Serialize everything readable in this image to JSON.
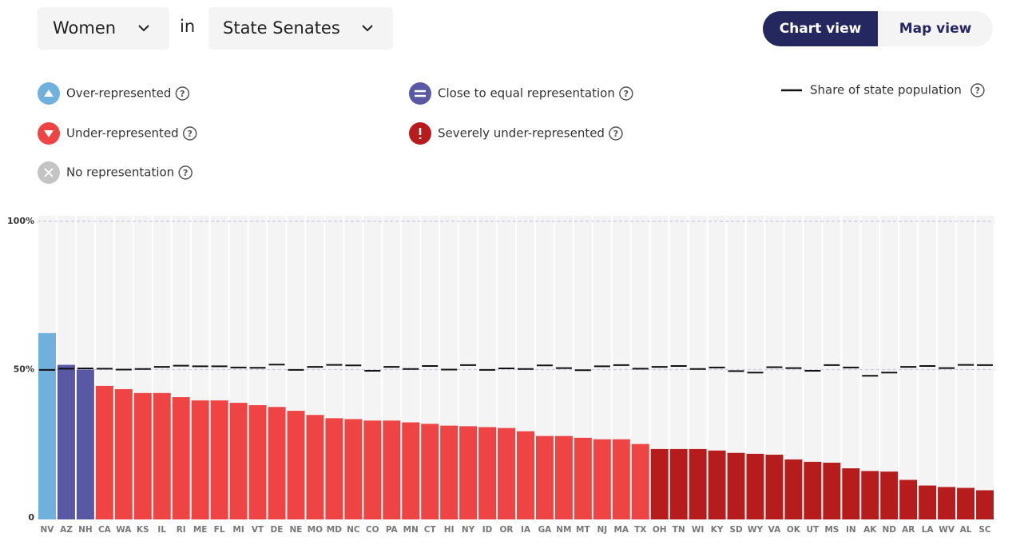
{
  "filters": {
    "group": "Women",
    "connector": "in",
    "chamber": "State Senates"
  },
  "view_toggle": {
    "active": "Chart view",
    "other": "Map view"
  },
  "help_icon": "?",
  "chart_data": {
    "type": "bar",
    "categories": [
      "NV",
      "AZ",
      "NH",
      "CA",
      "WA",
      "KS",
      "IL",
      "RI",
      "ME",
      "FL",
      "MI",
      "VT",
      "DE",
      "NE",
      "MO",
      "MD",
      "NC",
      "CO",
      "PA",
      "MN",
      "CT",
      "HI",
      "NY",
      "ID",
      "OR",
      "IA",
      "GA",
      "NM",
      "MT",
      "NJ",
      "MA",
      "TX",
      "OH",
      "TN",
      "WI",
      "KY",
      "SD",
      "WY",
      "VA",
      "OK",
      "UT",
      "MS",
      "IN",
      "AK",
      "ND",
      "AR",
      "LA",
      "WV",
      "AL",
      "SC"
    ],
    "series": [
      {
        "name": "Over-represented",
        "color": "#6fb0dd",
        "values": [
          62.3,
          null,
          null,
          null,
          null,
          null,
          null,
          null,
          null,
          null,
          null,
          null,
          null,
          null,
          null,
          null,
          null,
          null,
          null,
          null,
          null,
          null,
          null,
          null,
          null,
          null,
          null,
          null,
          null,
          null,
          null,
          null,
          null,
          null,
          null,
          null,
          null,
          null,
          null,
          null,
          null,
          null,
          null,
          null,
          null,
          null,
          null,
          null,
          null,
          null
        ]
      },
      {
        "name": "Close to equal representation",
        "color": "#5858a4",
        "values": [
          null,
          51.6,
          50,
          null,
          null,
          null,
          null,
          null,
          null,
          null,
          null,
          null,
          null,
          null,
          null,
          null,
          null,
          null,
          null,
          null,
          null,
          null,
          null,
          null,
          null,
          null,
          null,
          null,
          null,
          null,
          null,
          null,
          null,
          null,
          null,
          null,
          null,
          null,
          null,
          null,
          null,
          null,
          null,
          null,
          null,
          null,
          null,
          null,
          null,
          null
        ]
      },
      {
        "name": "Under-represented",
        "color": "#ef4444",
        "values": [
          null,
          null,
          null,
          44.5,
          43.4,
          42.1,
          42.1,
          40.7,
          39.6,
          39.6,
          38.8,
          38.0,
          37.4,
          36.1,
          34.7,
          33.6,
          33.3,
          32.8,
          32.8,
          32.2,
          31.7,
          31.1,
          30.9,
          30.6,
          30.3,
          29.2,
          27.6,
          27.6,
          27.0,
          26.5,
          26.5,
          24.9,
          null,
          null,
          null,
          null,
          null,
          null,
          null,
          null,
          null,
          null,
          null,
          null,
          null,
          null,
          null,
          null,
          null,
          null
        ]
      },
      {
        "name": "Severely under-represented",
        "color": "#b71c1c",
        "values": [
          null,
          null,
          null,
          null,
          null,
          null,
          null,
          null,
          null,
          null,
          null,
          null,
          null,
          null,
          null,
          null,
          null,
          null,
          null,
          null,
          null,
          null,
          null,
          null,
          null,
          null,
          null,
          null,
          null,
          null,
          null,
          null,
          23.2,
          23.2,
          23.2,
          22.7,
          21.9,
          21.6,
          21.3,
          19.7,
          18.9,
          18.6,
          16.7,
          15.8,
          15.6,
          12.8,
          10.9,
          10.4,
          10.1,
          9.3
        ]
      },
      {
        "name": "No representation",
        "color": "#c4c4c4",
        "values": [
          null,
          null,
          null,
          null,
          null,
          null,
          null,
          null,
          null,
          null,
          null,
          null,
          null,
          null,
          null,
          null,
          null,
          null,
          null,
          null,
          null,
          null,
          null,
          null,
          null,
          null,
          null,
          null,
          null,
          null,
          null,
          null,
          null,
          null,
          null,
          null,
          null,
          null,
          null,
          null,
          null,
          null,
          null,
          null,
          null,
          null,
          null,
          null,
          null,
          null
        ]
      },
      {
        "name": "Share of state population",
        "color": "#111111",
        "mark": "dash",
        "values": [
          49.9,
          50.3,
          50.4,
          50.3,
          50.0,
          50.2,
          50.9,
          51.3,
          51.1,
          51.1,
          50.7,
          50.6,
          51.7,
          49.9,
          50.9,
          51.6,
          51.4,
          49.6,
          50.9,
          50.2,
          51.2,
          50.0,
          51.5,
          49.9,
          50.4,
          50.2,
          51.4,
          50.5,
          49.8,
          51.1,
          51.5,
          50.3,
          50.9,
          51.2,
          50.2,
          50.7,
          49.5,
          49.0,
          50.8,
          50.5,
          49.6,
          51.5,
          50.7,
          47.9,
          49.0,
          50.9,
          51.2,
          50.5,
          51.6,
          51.5
        ]
      }
    ],
    "ylim": [
      0,
      100
    ],
    "yticks": [
      {
        "value": 0,
        "label": "0"
      },
      {
        "value": 50,
        "label": "50%"
      },
      {
        "value": 100,
        "label": "100%"
      }
    ],
    "grid": true
  }
}
